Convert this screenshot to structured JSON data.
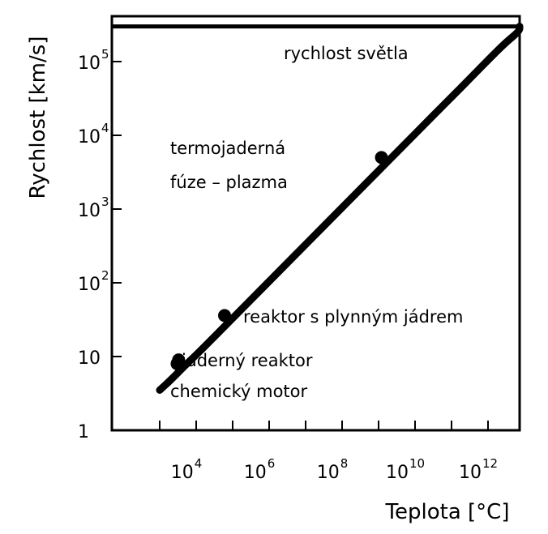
{
  "chart_data": {
    "type": "line",
    "xlabel": "Teplota [°C]",
    "ylabel": "Rychlost [km/s]",
    "x_scale": "log",
    "y_scale": "log",
    "xlim": [
      1000,
      1000000000000000
    ],
    "ylim": [
      1,
      300000
    ],
    "x_ticks": [
      {
        "base": "10",
        "exp": "4",
        "value": 10000
      },
      {
        "base": "10",
        "exp": "6",
        "value": 1000000
      },
      {
        "base": "10",
        "exp": "8",
        "value": 100000000
      },
      {
        "base": "10",
        "exp": "10",
        "value": 10000000000
      },
      {
        "base": "10",
        "exp": "12",
        "value": 1000000000000
      }
    ],
    "y_ticks": [
      {
        "base": "1",
        "exp": "",
        "value": 1
      },
      {
        "base": "10",
        "exp": "",
        "value": 10
      },
      {
        "base": "10",
        "exp": "2",
        "value": 100
      },
      {
        "base": "10",
        "exp": "3",
        "value": 1000
      },
      {
        "base": "10",
        "exp": "4",
        "value": 10000
      },
      {
        "base": "10",
        "exp": "5",
        "value": 100000
      }
    ],
    "series": [
      {
        "x": [
          1000,
          2000,
          5000,
          10000,
          100000,
          1000000,
          10000000,
          100000000,
          1000000000,
          10000000000,
          100000000000,
          300000000000,
          1000000000000,
          3000000000000,
          10000000000000,
          100000000000000,
          1000000000000000
        ],
        "y": [
          3.5,
          4.8,
          7.6,
          10.5,
          33,
          105,
          330,
          1050,
          3300,
          10500,
          33000,
          57000,
          105000,
          180000,
          260000,
          300000,
          300000
        ]
      }
    ],
    "points": [
      {
        "label": "chemický motor",
        "x": 3000,
        "y": 8
      },
      {
        "label": "jaderný reaktor",
        "x": 3300,
        "y": 9
      },
      {
        "label": "reaktor s plynným jádrem",
        "x": 60000,
        "y": 36
      },
      {
        "label": "termojaderná fúze – plazma",
        "x": 1200000000,
        "y": 5000
      }
    ],
    "reference_line": {
      "label": "rychlost světla",
      "y": 300000
    },
    "annotations": {
      "light": "rychlost světla",
      "fusion_1": "termojaderná",
      "fusion_2": "fúze – plazma",
      "gas_core": "reaktor s plynným jádrem",
      "nuclear": "jaderný reaktor",
      "chemical": "chemický motor"
    },
    "grid": false,
    "legend": "none"
  }
}
